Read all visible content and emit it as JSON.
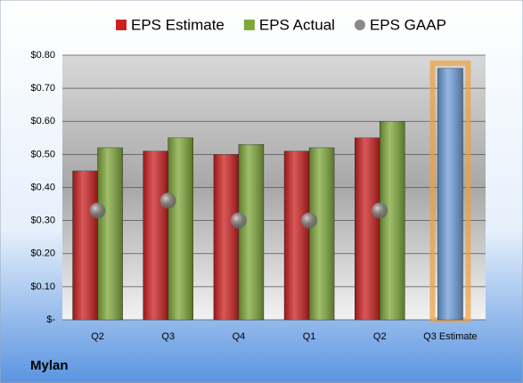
{
  "chart_data": {
    "type": "bar",
    "title": "Mylan",
    "categories": [
      "Q2",
      "Q3",
      "Q4",
      "Q1",
      "Q2",
      "Q3 Estimate"
    ],
    "series": [
      {
        "name": "EPS Estimate",
        "color": "#cc2020",
        "colors": [
          "#cc2020",
          "#cc2020",
          "#cc2020",
          "#cc2020",
          "#cc2020",
          "#6f9fdc"
        ],
        "values": [
          0.45,
          0.51,
          0.5,
          0.51,
          0.55,
          0.76
        ]
      },
      {
        "name": "EPS Actual",
        "color": "#7fa83a",
        "values": [
          0.52,
          0.55,
          0.53,
          0.52,
          0.6,
          null
        ]
      },
      {
        "name": "EPS GAAP",
        "color": "#8a8a8a",
        "values": [
          0.33,
          0.36,
          0.3,
          0.3,
          0.33,
          null
        ]
      }
    ],
    "ylim": [
      0,
      0.8
    ],
    "yticks": [
      {
        "value": 0,
        "label": "$-"
      },
      {
        "value": 0.1,
        "label": "$0.10"
      },
      {
        "value": 0.2,
        "label": "$0.20"
      },
      {
        "value": 0.3,
        "label": "$0.30"
      },
      {
        "value": 0.4,
        "label": "$0.40"
      },
      {
        "value": 0.5,
        "label": "$0.50"
      },
      {
        "value": 0.6,
        "label": "$0.60"
      },
      {
        "value": 0.7,
        "label": "$0.70"
      },
      {
        "value": 0.8,
        "label": "$0.80"
      }
    ],
    "grid": true,
    "legend": "top"
  }
}
